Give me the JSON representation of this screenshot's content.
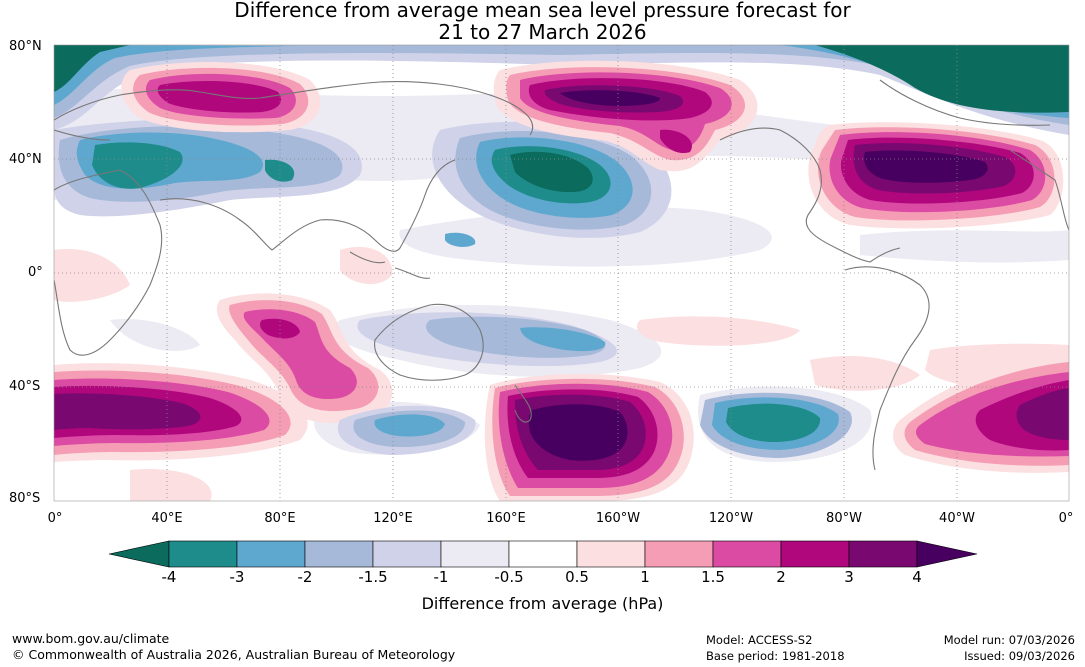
{
  "title": {
    "line1": "Difference from average mean sea level pressure forecast for",
    "line2": "21 to 27 March 2026"
  },
  "map": {
    "lat_labels": [
      "80°N",
      "40°N",
      "0°",
      "40°S",
      "80°S"
    ],
    "lon_labels": [
      "0°",
      "40°E",
      "80°E",
      "120°E",
      "160°E",
      "160°W",
      "120°W",
      "80°W",
      "40°W",
      "0°"
    ],
    "grid": true
  },
  "colorbar": {
    "ticks": [
      "-4",
      "-3",
      "-2",
      "-1.5",
      "-1",
      "-0.5",
      "0.5",
      "1",
      "1.5",
      "2",
      "3",
      "4"
    ],
    "colors": [
      "#1f8c8c",
      "#5ea8cf",
      "#a6b9d9",
      "#cfd2e8",
      "#eceaf2",
      "#ffffff",
      "#fcdfe0",
      "#f59db5",
      "#db4aa3",
      "#b0077d",
      "#7a0871"
    ],
    "under_color": "#0b6b5c",
    "over_color": "#47005f",
    "label": "Difference from average (hPa)"
  },
  "footer": {
    "website": "www.bom.gov.au/climate",
    "copyright": "© Commonwealth of Australia 2026, Australian Bureau of Meteorology",
    "model": "Model: ACCESS-S2",
    "base_period": "Base period: 1981-2018",
    "model_run": "Model run: 07/03/2026",
    "issued": "Issued: 09/03/2026"
  }
}
